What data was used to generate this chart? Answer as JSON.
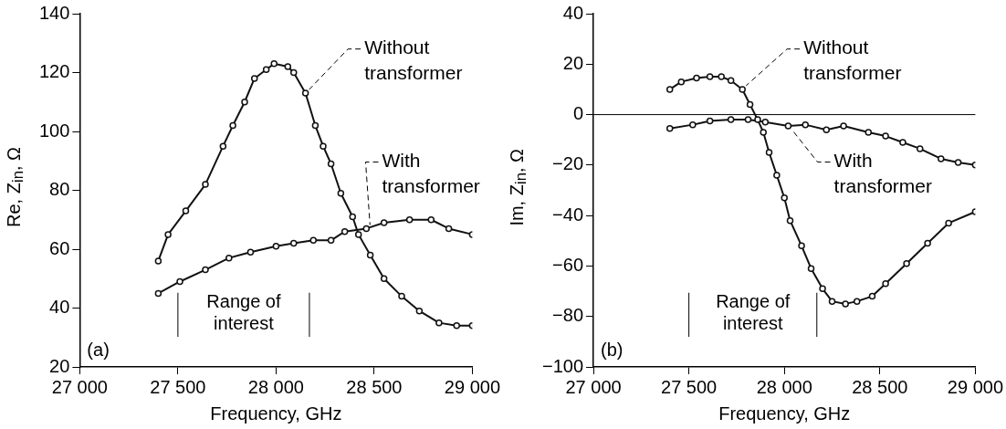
{
  "chart_data": [
    {
      "type": "line",
      "xlabel": "Frequency, GHz",
      "ylabel": "Re, Z$_{in}$, Ω",
      "marker": "circle",
      "legend": false,
      "xlim": [
        27000,
        29000
      ],
      "xticks": [
        {
          "value": 27000,
          "label": "27 000"
        },
        {
          "value": 27500,
          "label": "27 500"
        },
        {
          "value": 28000,
          "label": "28 000"
        },
        {
          "value": 28500,
          "label": "28 500"
        },
        {
          "value": 29000,
          "label": "29 000"
        }
      ],
      "ylim": [
        20,
        140
      ],
      "yticks": [
        20,
        40,
        60,
        80,
        100,
        120,
        140
      ],
      "annotations": [
        "(a)",
        "Range of interest"
      ],
      "ref_lines": [
        {
          "axis": "x",
          "value": 27500,
          "color": "#000000"
        },
        {
          "axis": "x",
          "value": 28170,
          "color": "#000000"
        }
      ],
      "series": [
        {
          "name": "Without transformer",
          "color": "#111111",
          "x": [
            27400,
            27450,
            27540,
            27640,
            27730,
            27780,
            27840,
            27890,
            27950,
            27990,
            28060,
            28090,
            28150,
            28200,
            28240,
            28280,
            28330,
            28390,
            28420,
            28480,
            28550,
            28640,
            28730,
            28830,
            28920,
            29000
          ],
          "values": [
            56,
            65,
            73,
            82,
            95,
            102,
            110,
            118,
            121,
            123,
            122,
            120,
            113,
            102,
            95,
            89,
            79,
            71,
            65,
            58,
            50,
            44,
            39,
            35,
            34,
            34
          ]
        },
        {
          "name": "With transformer",
          "color": "#111111",
          "x": [
            27400,
            27510,
            27640,
            27760,
            27870,
            28000,
            28090,
            28190,
            28280,
            28350,
            28460,
            28550,
            28680,
            28790,
            28880,
            29000
          ],
          "values": [
            45,
            49,
            53,
            57,
            59,
            61,
            62,
            63,
            63,
            66,
            67,
            69,
            70,
            70,
            67,
            65
          ]
        }
      ]
    },
    {
      "type": "line",
      "xlabel": "Frequency, GHz",
      "ylabel": "Im, Z$_{in}$, Ω",
      "marker": "circle",
      "legend": false,
      "xlim": [
        27000,
        29000
      ],
      "xticks": [
        {
          "value": 27000,
          "label": "27 000"
        },
        {
          "value": 27500,
          "label": "27 500"
        },
        {
          "value": 28000,
          "label": "28 000"
        },
        {
          "value": 28500,
          "label": "28 500"
        },
        {
          "value": 29000,
          "label": "29 000"
        }
      ],
      "ylim": [
        -100,
        40
      ],
      "yticks": [
        {
          "value": -100,
          "label": "−100"
        },
        {
          "value": -80,
          "label": "−80"
        },
        {
          "value": -60,
          "label": "−60"
        },
        {
          "value": -40,
          "label": "−40"
        },
        {
          "value": -20,
          "label": "−20"
        },
        0,
        20,
        40
      ],
      "annotations": [
        "(b)",
        "Range of interest"
      ],
      "ref_lines": [
        {
          "axis": "y",
          "value": 0,
          "color": "#000000"
        },
        {
          "axis": "x",
          "value": 27500,
          "color": "#000000"
        },
        {
          "axis": "x",
          "value": 28170,
          "color": "#000000"
        }
      ],
      "series": [
        {
          "name": "Without transformer",
          "color": "#111111",
          "x": [
            27400,
            27460,
            27540,
            27610,
            27670,
            27720,
            27780,
            27820,
            27860,
            27890,
            27920,
            27960,
            28000,
            28030,
            28090,
            28140,
            28200,
            28250,
            28320,
            28380,
            28460,
            28530,
            28640,
            28750,
            28860,
            29000
          ],
          "values": [
            10,
            13,
            14.5,
            15,
            15,
            13.5,
            10,
            4,
            -2,
            -7,
            -15,
            -24,
            -33,
            -42,
            -52,
            -61,
            -69,
            -74,
            -75,
            -74,
            -72,
            -67,
            -59,
            -51,
            -43,
            -38.5
          ]
        },
        {
          "name": "With transformer",
          "color": "#111111",
          "x": [
            27400,
            27520,
            27610,
            27720,
            27810,
            27900,
            28020,
            28110,
            28220,
            28310,
            28440,
            28530,
            28620,
            28710,
            28820,
            28910,
            29000
          ],
          "values": [
            -5.5,
            -4,
            -2.5,
            -2,
            -2,
            -3,
            -4.5,
            -4,
            -6,
            -4.5,
            -7,
            -8.5,
            -11,
            -13.5,
            -17.5,
            -19,
            -20
          ]
        }
      ]
    }
  ]
}
